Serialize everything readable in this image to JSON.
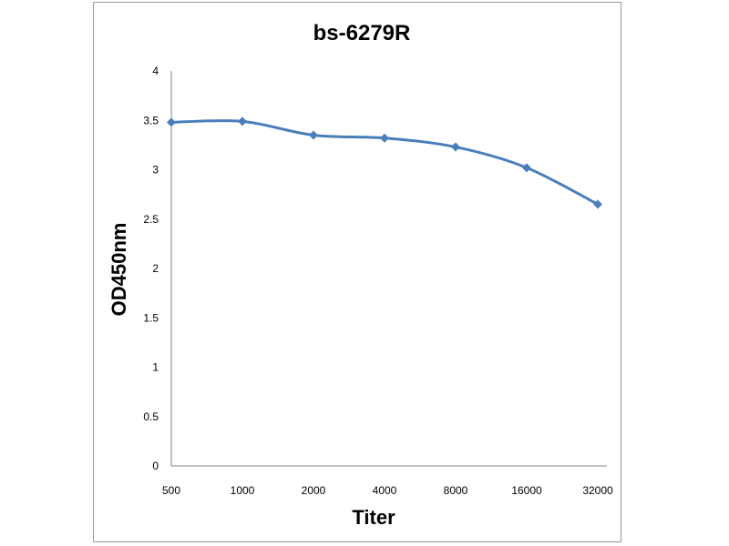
{
  "chart_data": {
    "type": "line",
    "title": "bs-6279R",
    "xlabel": "Titer",
    "ylabel": "OD450nm",
    "categories": [
      "500",
      "1000",
      "2000",
      "4000",
      "8000",
      "16000",
      "32000"
    ],
    "series": [
      {
        "values": [
          3.48,
          3.49,
          3.35,
          3.32,
          3.23,
          3.02,
          2.65
        ]
      }
    ],
    "ylim": [
      0,
      4
    ],
    "yticks": [
      "0",
      "0.5",
      "1",
      "1.5",
      "2",
      "2.5",
      "3",
      "3.5",
      "4"
    ],
    "grid": false,
    "legend": "none",
    "line_color": "#4a7ebb",
    "axis_color": "#868686"
  }
}
